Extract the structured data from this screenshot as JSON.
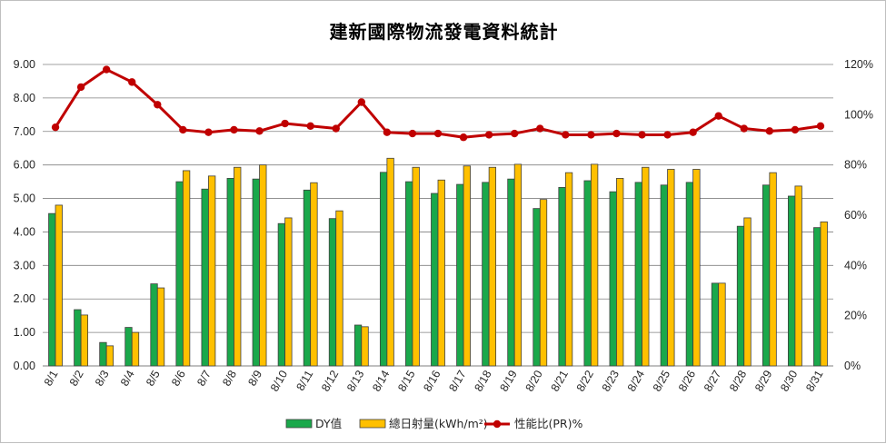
{
  "chart_data": {
    "type": "bar",
    "title": "建新國際物流發電資料統計",
    "categories": [
      "8/1",
      "8/2",
      "8/3",
      "8/4",
      "8/5",
      "8/6",
      "8/7",
      "8/8",
      "8/9",
      "8/10",
      "8/11",
      "8/12",
      "8/13",
      "8/14",
      "8/15",
      "8/16",
      "8/17",
      "8/18",
      "8/19",
      "8/20",
      "8/21",
      "8/22",
      "8/23",
      "8/24",
      "8/25",
      "8/26",
      "8/27",
      "8/28",
      "8/29",
      "8/30",
      "8/31"
    ],
    "series": [
      {
        "name": "DY值",
        "type": "bar",
        "axis": "left",
        "color": "#1aa84b",
        "values": [
          4.55,
          1.68,
          0.7,
          1.15,
          2.45,
          5.5,
          5.28,
          5.6,
          5.58,
          4.25,
          5.25,
          4.4,
          1.22,
          5.78,
          5.5,
          5.15,
          5.42,
          5.48,
          5.58,
          4.7,
          5.33,
          5.53,
          5.2,
          5.48,
          5.4,
          5.48,
          2.47,
          4.17,
          5.4,
          5.07,
          4.13
        ]
      },
      {
        "name": "總日射量(kWh/m²)",
        "type": "bar",
        "axis": "left",
        "color": "#ffc000",
        "values": [
          4.8,
          1.52,
          0.6,
          1.0,
          2.33,
          5.83,
          5.67,
          5.93,
          6.0,
          4.42,
          5.47,
          4.63,
          1.17,
          6.2,
          5.93,
          5.55,
          5.97,
          5.93,
          6.02,
          4.97,
          5.77,
          6.02,
          5.6,
          5.93,
          5.87,
          5.87,
          2.47,
          4.42,
          5.77,
          5.37,
          4.3
        ]
      },
      {
        "name": "性能比(PR)%",
        "type": "line",
        "axis": "right",
        "color": "#c00000",
        "values": [
          95,
          111,
          118,
          113,
          104,
          94,
          93,
          94,
          93.5,
          96.5,
          95.5,
          94.5,
          105,
          93,
          92.5,
          92.5,
          91,
          92,
          92.5,
          94.5,
          92,
          92,
          92.5,
          92,
          92,
          93,
          99.5,
          94.5,
          93.5,
          94,
          95.5
        ]
      }
    ],
    "y_left": {
      "min": 0,
      "max": 9,
      "step": 1,
      "tick_labels": [
        "0.00",
        "1.00",
        "2.00",
        "3.00",
        "4.00",
        "5.00",
        "6.00",
        "7.00",
        "8.00",
        "9.00"
      ]
    },
    "y_right": {
      "min": 0,
      "max": 120,
      "step": 20,
      "tick_labels": [
        "0%",
        "20%",
        "40%",
        "60%",
        "80%",
        "100%",
        "120%"
      ]
    },
    "grid": true,
    "legend_position": "bottom"
  }
}
